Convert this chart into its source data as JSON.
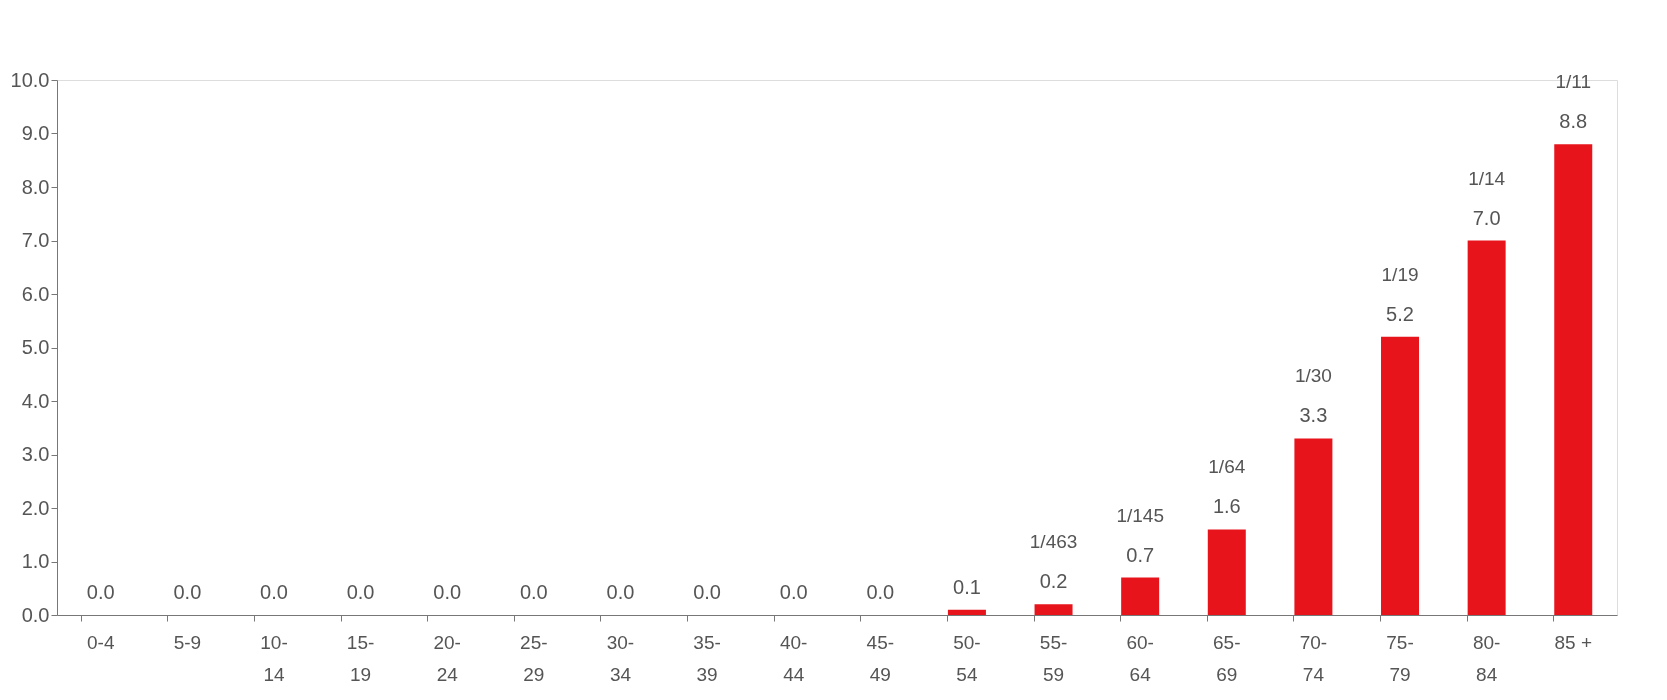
{
  "chart_data": {
    "type": "bar",
    "categories": [
      "0-4",
      "5-9",
      "10-14",
      "15-19",
      "20-24",
      "25-29",
      "30-34",
      "35-39",
      "40-44",
      "45-49",
      "50-54",
      "55-59",
      "60-64",
      "65-69",
      "70-74",
      "75-79",
      "80-84",
      "85 +"
    ],
    "values": [
      0.0,
      0.0,
      0.0,
      0.0,
      0.0,
      0.0,
      0.0,
      0.0,
      0.0,
      0.0,
      0.1,
      0.2,
      0.7,
      1.6,
      3.3,
      5.2,
      7.0,
      8.8
    ],
    "value_labels": [
      "0.0",
      "0.0",
      "0.0",
      "0.0",
      "0.0",
      "0.0",
      "0.0",
      "0.0",
      "0.0",
      "0.0",
      "0.1",
      "0.2",
      "0.7",
      "1.6",
      "3.3",
      "5.2",
      "7.0",
      "8.8"
    ],
    "color": "#e8141c",
    "ylim": [
      0,
      10
    ],
    "yticks": [
      {
        "value": 0,
        "label": "0.0"
      },
      {
        "value": 1,
        "label": "1.0"
      },
      {
        "value": 2,
        "label": "2.0"
      },
      {
        "value": 3,
        "label": "3.0"
      },
      {
        "value": 4,
        "label": "4.0"
      },
      {
        "value": 5,
        "label": "5.0"
      },
      {
        "value": 6,
        "label": "6.0"
      },
      {
        "value": 7,
        "label": "7.0"
      },
      {
        "value": 8,
        "label": "8.0"
      },
      {
        "value": 9,
        "label": "9.0"
      },
      {
        "value": 10,
        "label": "10.0"
      }
    ],
    "annotations": [
      "1/463",
      "1/145",
      "1/64",
      "1/30",
      "1/19",
      "1/14",
      "1/11"
    ],
    "grid": false
  }
}
